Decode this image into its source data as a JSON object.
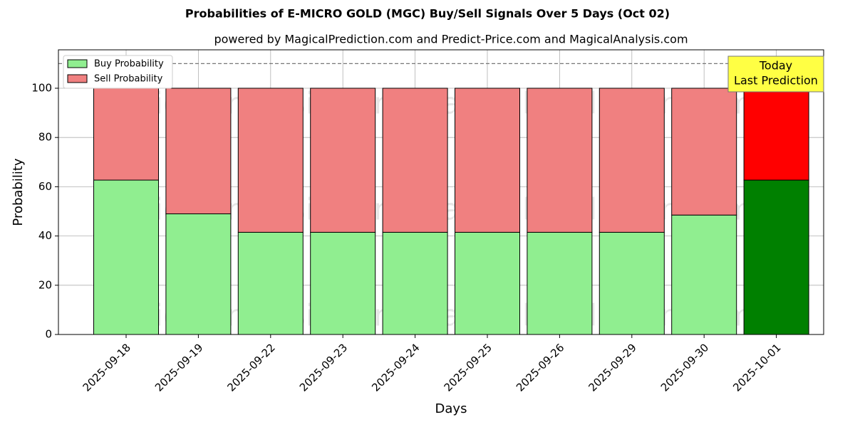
{
  "chart_data": {
    "type": "stacked_bar",
    "title": "Probabilities of E-MICRO GOLD (MGC) Buy/Sell Signals Over 5 Days (Oct 02)",
    "subtitle": "powered by MagicalPrediction.com and Predict-Price.com and MagicalAnalysis.com",
    "x_label": "Days",
    "y_label": "Probability",
    "categories": [
      "2025-09-18",
      "2025-09-19",
      "2025-09-22",
      "2025-09-23",
      "2025-09-24",
      "2025-09-25",
      "2025-09-26",
      "2025-09-29",
      "2025-09-30",
      "2025-10-01"
    ],
    "series": [
      {
        "name": "Buy Probability",
        "color": "#90ee90",
        "colors": [
          "#90ee90",
          "#90ee90",
          "#90ee90",
          "#90ee90",
          "#90ee90",
          "#90ee90",
          "#90ee90",
          "#90ee90",
          "#90ee90",
          "#008000"
        ],
        "values": [
          62.7,
          49,
          41.5,
          41.5,
          41.5,
          41.5,
          41.5,
          41.5,
          48.5,
          62.7
        ]
      },
      {
        "name": "Sell Probability",
        "color": "#f08080",
        "colors": [
          "#f08080",
          "#f08080",
          "#f08080",
          "#f08080",
          "#f08080",
          "#f08080",
          "#f08080",
          "#f08080",
          "#f08080",
          "#ff0000"
        ],
        "values": [
          37.3,
          51,
          58.5,
          58.5,
          58.5,
          58.5,
          58.5,
          58.5,
          51.5,
          37.3
        ]
      }
    ],
    "ylim": [
      0,
      115.6
    ],
    "yticks": [
      0,
      20,
      40,
      60,
      80,
      100
    ],
    "grid": true,
    "legend": "upper left",
    "reference_line": 110,
    "annotation": [
      "Today",
      "Last Prediction"
    ],
    "watermarks": [
      "MagicalAnalysis.com",
      "MagicalPrediction.com"
    ]
  }
}
